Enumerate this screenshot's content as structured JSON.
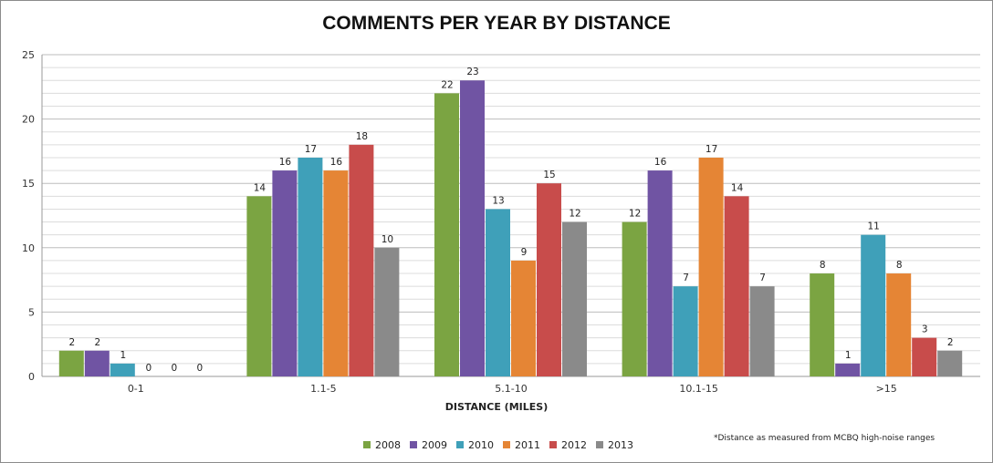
{
  "chart_data": {
    "type": "bar",
    "title": "COMMENTS PER YEAR BY DISTANCE",
    "xlabel": "DISTANCE  (MILES)",
    "ylabel": "",
    "ylim": [
      0,
      25
    ],
    "yticks": [
      0,
      5,
      10,
      15,
      20,
      25
    ],
    "grid": true,
    "legend_position": "bottom",
    "categories": [
      "0-1",
      "1.1-5",
      "5.1-10",
      "10.1-15",
      ">15"
    ],
    "series": [
      {
        "name": "2008",
        "color": "#7ba442",
        "values": [
          2,
          14,
          22,
          12,
          8
        ]
      },
      {
        "name": "2009",
        "color": "#7054a3",
        "values": [
          2,
          16,
          23,
          16,
          1
        ]
      },
      {
        "name": "2010",
        "color": "#3fa0b9",
        "values": [
          1,
          17,
          13,
          7,
          11
        ]
      },
      {
        "name": "2011",
        "color": "#e58535",
        "values": [
          0,
          16,
          9,
          17,
          8
        ]
      },
      {
        "name": "2012",
        "color": "#c84c4b",
        "values": [
          0,
          18,
          15,
          14,
          3
        ]
      },
      {
        "name": "2013",
        "color": "#8a8a8a",
        "values": [
          0,
          10,
          12,
          7,
          2
        ]
      }
    ],
    "footnote": "*Distance as measured from MCBQ high-noise ranges"
  }
}
